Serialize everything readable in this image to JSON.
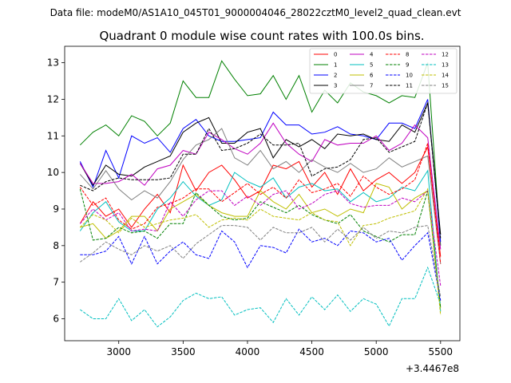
{
  "header": {
    "datafile": "Data file: modeM0/AS1A10_045T01_9000004046_28022cztM0_level2_quad_clean.evt"
  },
  "chart_data": {
    "type": "line",
    "title": "Quadrant 0 module wise count rates with 100.0s bins.",
    "xlabel": "",
    "ylabel": "",
    "x_offset_label": "+3.4467e8",
    "xlim": [
      2580,
      5650
    ],
    "ylim": [
      5.4,
      13.45
    ],
    "xticks": [
      3000,
      3500,
      4000,
      4500,
      5000,
      5500
    ],
    "yticks": [
      6,
      7,
      8,
      9,
      10,
      11,
      12,
      13
    ],
    "grid": false,
    "legend_position": "top-right",
    "x": [
      2700,
      2800,
      2900,
      3000,
      3100,
      3200,
      3300,
      3400,
      3500,
      3600,
      3700,
      3800,
      3900,
      4000,
      4100,
      4200,
      4300,
      4400,
      4500,
      4600,
      4700,
      4800,
      4900,
      5000,
      5100,
      5200,
      5300,
      5400,
      5500
    ],
    "series": [
      {
        "name": "0",
        "color": "#ff0000",
        "dash": "solid",
        "values": [
          8.6,
          9.2,
          8.8,
          9.0,
          8.5,
          9.0,
          9.4,
          8.9,
          10.2,
          9.5,
          10.0,
          10.2,
          9.8,
          9.3,
          9.5,
          10.2,
          10.1,
          10.3,
          9.6,
          10.0,
          9.4,
          10.1,
          9.5,
          9.8,
          10.0,
          9.7,
          10.0,
          10.7,
          7.7
        ]
      },
      {
        "name": "1",
        "color": "#008000",
        "dash": "solid",
        "values": [
          10.75,
          11.1,
          11.3,
          11.0,
          11.55,
          11.4,
          11.0,
          11.35,
          12.5,
          12.05,
          12.05,
          13.05,
          12.55,
          12.1,
          12.15,
          12.65,
          12.0,
          12.65,
          11.65,
          12.25,
          11.9,
          12.45,
          12.2,
          12.1,
          11.9,
          12.1,
          12.05,
          13.0,
          8.0
        ]
      },
      {
        "name": "2",
        "color": "#0000ff",
        "dash": "solid",
        "values": [
          10.3,
          9.6,
          10.6,
          9.85,
          11.0,
          10.8,
          10.95,
          10.55,
          11.2,
          11.45,
          11.0,
          10.85,
          10.85,
          10.9,
          10.95,
          11.65,
          11.3,
          11.3,
          11.05,
          11.1,
          11.25,
          11.05,
          11.0,
          10.9,
          11.35,
          11.35,
          11.2,
          12.0,
          8.1
        ]
      },
      {
        "name": "3",
        "color": "#000000",
        "dash": "solid",
        "values": [
          10.25,
          9.65,
          10.2,
          9.95,
          9.9,
          10.15,
          10.3,
          10.45,
          11.1,
          11.35,
          11.5,
          10.8,
          10.8,
          11.1,
          11.2,
          10.4,
          10.9,
          10.7,
          10.9,
          10.65,
          11.05,
          11.0,
          11.05,
          10.9,
          10.85,
          11.3,
          11.1,
          11.9,
          8.3
        ]
      },
      {
        "name": "4",
        "color": "#c000c0",
        "dash": "solid",
        "values": [
          10.25,
          9.7,
          9.7,
          9.75,
          9.95,
          9.65,
          10.1,
          10.2,
          10.6,
          10.5,
          11.1,
          10.9,
          10.65,
          10.5,
          10.8,
          11.35,
          10.8,
          10.5,
          10.3,
          10.9,
          10.75,
          10.8,
          10.8,
          11.0,
          10.6,
          10.8,
          11.3,
          10.95,
          7.9
        ]
      },
      {
        "name": "5",
        "color": "#00bfbf",
        "dash": "solid",
        "values": [
          8.4,
          8.9,
          9.2,
          8.65,
          8.4,
          8.4,
          9.0,
          9.3,
          9.75,
          9.35,
          9.1,
          9.25,
          10.0,
          9.75,
          9.6,
          9.85,
          9.3,
          9.6,
          9.7,
          9.5,
          9.55,
          9.2,
          9.45,
          9.2,
          9.3,
          9.6,
          9.5,
          10.05,
          6.2
        ]
      },
      {
        "name": "6",
        "color": "#bfbf00",
        "dash": "solid",
        "values": [
          8.5,
          8.6,
          8.2,
          8.4,
          8.8,
          8.8,
          8.4,
          9.0,
          9.2,
          9.4,
          9.1,
          8.9,
          8.8,
          8.8,
          9.5,
          9.2,
          9.0,
          9.4,
          8.9,
          9.0,
          8.8,
          9.0,
          8.9,
          9.7,
          9.6,
          9.0,
          9.3,
          9.5,
          6.3
        ]
      },
      {
        "name": "7",
        "color": "#808080",
        "dash": "solid",
        "values": [
          9.95,
          9.55,
          10.05,
          9.55,
          9.25,
          9.5,
          9.3,
          9.75,
          10.35,
          10.75,
          10.9,
          11.2,
          10.4,
          10.2,
          10.6,
          10.1,
          10.3,
          10.0,
          10.35,
          10.15,
          10.0,
          10.25,
          10.0,
          10.1,
          10.4,
          10.15,
          10.3,
          10.45,
          7.5
        ]
      },
      {
        "name": "8",
        "color": "#ff0000",
        "dash": "dashed",
        "values": [
          9.6,
          9.1,
          9.3,
          8.7,
          8.45,
          8.6,
          9.05,
          9.15,
          9.3,
          9.55,
          9.55,
          9.2,
          9.45,
          9.7,
          9.4,
          9.6,
          9.3,
          9.8,
          9.45,
          9.55,
          9.7,
          9.35,
          9.9,
          9.6,
          9.4,
          9.55,
          9.8,
          10.8,
          7.5
        ]
      },
      {
        "name": "9",
        "color": "#008000",
        "dash": "dashed",
        "values": [
          9.55,
          8.15,
          8.2,
          8.5,
          8.35,
          8.4,
          8.2,
          8.6,
          8.6,
          9.45,
          9.1,
          8.8,
          8.7,
          8.75,
          9.2,
          9.05,
          8.9,
          9.1,
          8.85,
          8.7,
          8.6,
          8.85,
          8.4,
          8.25,
          8.1,
          8.3,
          8.3,
          9.5,
          6.3
        ]
      },
      {
        "name": "10",
        "color": "#0000ff",
        "dash": "dashed",
        "values": [
          7.75,
          7.75,
          7.85,
          8.25,
          7.5,
          8.25,
          7.5,
          7.85,
          8.1,
          7.75,
          7.65,
          8.4,
          8.1,
          7.4,
          8.0,
          7.95,
          7.8,
          8.45,
          8.1,
          8.2,
          8.0,
          8.4,
          8.35,
          8.1,
          8.2,
          7.6,
          8.0,
          8.35,
          6.5
        ]
      },
      {
        "name": "11",
        "color": "#000000",
        "dash": "dashed",
        "values": [
          9.65,
          9.5,
          9.75,
          9.85,
          9.8,
          9.8,
          9.8,
          9.85,
          10.5,
          10.5,
          11.2,
          10.6,
          10.65,
          10.8,
          11.05,
          10.75,
          10.75,
          10.8,
          9.9,
          10.1,
          10.15,
          10.35,
          10.9,
          10.95,
          10.55,
          10.7,
          10.85,
          11.9,
          8.2
        ]
      },
      {
        "name": "12",
        "color": "#c000c0",
        "dash": "dashed",
        "values": [
          8.6,
          9.0,
          8.7,
          8.9,
          8.4,
          8.45,
          8.4,
          9.2,
          8.8,
          9.25,
          9.5,
          9.5,
          9.1,
          9.35,
          9.1,
          9.4,
          9.5,
          9.0,
          9.15,
          9.4,
          9.5,
          9.15,
          9.05,
          9.1,
          9.1,
          9.3,
          9.2,
          9.5,
          6.9
        ]
      },
      {
        "name": "13",
        "color": "#00bfbf",
        "dash": "dashed",
        "values": [
          6.25,
          6.0,
          6.0,
          6.55,
          5.95,
          6.25,
          5.78,
          6.05,
          6.5,
          6.7,
          6.55,
          6.6,
          6.1,
          6.25,
          6.3,
          5.9,
          6.55,
          6.1,
          6.6,
          6.25,
          6.65,
          6.2,
          6.55,
          6.4,
          5.8,
          6.55,
          6.55,
          7.4,
          6.4
        ]
      },
      {
        "name": "14",
        "color": "#bfbf00",
        "dash": "dashed",
        "values": [
          8.5,
          8.85,
          8.7,
          8.35,
          8.75,
          8.5,
          8.6,
          8.7,
          8.75,
          8.85,
          8.5,
          8.7,
          8.75,
          8.7,
          9.0,
          8.8,
          8.75,
          8.7,
          8.9,
          8.7,
          8.65,
          8.0,
          8.55,
          8.6,
          8.75,
          8.85,
          8.95,
          9.55,
          6.1
        ]
      },
      {
        "name": "15",
        "color": "#808080",
        "dash": "dashed",
        "values": [
          7.55,
          7.8,
          8.1,
          7.9,
          7.75,
          8.0,
          7.85,
          8.0,
          7.65,
          8.05,
          8.3,
          8.55,
          8.55,
          8.5,
          8.15,
          8.5,
          8.35,
          8.35,
          8.5,
          8.1,
          8.45,
          8.15,
          8.5,
          8.2,
          8.4,
          8.35,
          8.5,
          8.55,
          6.6
        ]
      }
    ]
  }
}
